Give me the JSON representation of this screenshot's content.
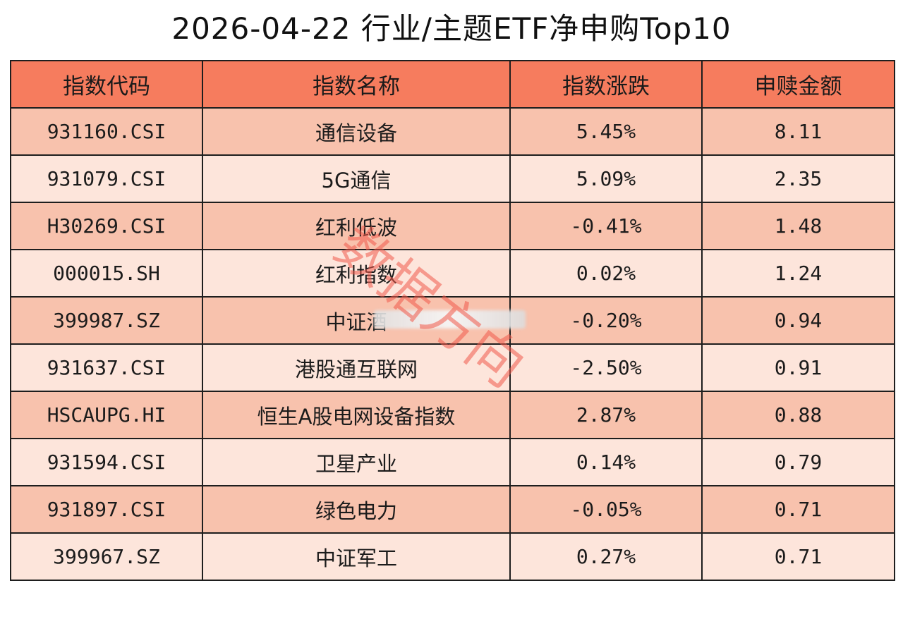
{
  "chart_data": {
    "type": "table",
    "title": "2026-04-22 行业/主题ETF净申购Top10",
    "columns": [
      "指数代码",
      "指数名称",
      "指数涨跌",
      "申赎金额"
    ],
    "rows": [
      [
        "931160.CSI",
        "通信设备",
        "5.45%",
        "8.11"
      ],
      [
        "931079.CSI",
        "5G通信",
        "5.09%",
        "2.35"
      ],
      [
        "H30269.CSI",
        "红利低波",
        "-0.41%",
        "1.48"
      ],
      [
        "000015.SH",
        "红利指数",
        "0.02%",
        "1.24"
      ],
      [
        "399987.SZ",
        "中证酒",
        "-0.20%",
        "0.94"
      ],
      [
        "931637.CSI",
        "港股通互联网",
        "-2.50%",
        "0.91"
      ],
      [
        "HSCAUPG.HI",
        "恒生A股电网设备指数",
        "2.87%",
        "0.88"
      ],
      [
        "931594.CSI",
        "卫星产业",
        "0.14%",
        "0.79"
      ],
      [
        "931897.CSI",
        "绿色电力",
        "-0.05%",
        "0.71"
      ],
      [
        "399967.SZ",
        "中证军工",
        "0.27%",
        "0.71"
      ]
    ]
  },
  "watermark": "数据方向",
  "colors": {
    "header": "#f67c5e",
    "row_dark": "#f8c2ad",
    "row_light": "#fde5db",
    "watermark": "#f05a4a"
  }
}
